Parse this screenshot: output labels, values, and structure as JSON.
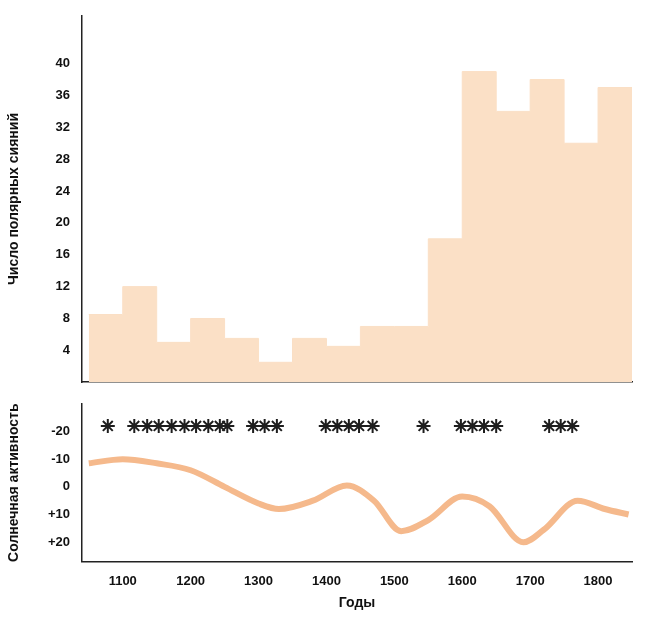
{
  "chart_data": [
    {
      "type": "histogram",
      "y_label": "Число полярных сияний",
      "bins": [
        1050,
        1100,
        1150,
        1200,
        1250,
        1300,
        1350,
        1400,
        1450,
        1500,
        1550,
        1600,
        1650,
        1700,
        1750,
        1800,
        1850
      ],
      "values": [
        8.5,
        12,
        5,
        8,
        5.5,
        2.5,
        5.5,
        4.5,
        7,
        7,
        18,
        39,
        34,
        38,
        30,
        37
      ],
      "color": "#fbe0c6",
      "xlim": [
        1040,
        1850
      ],
      "ylim": [
        0,
        46
      ],
      "yticks": [
        4,
        8,
        12,
        16,
        20,
        24,
        28,
        32,
        36,
        40
      ],
      "grid": false,
      "tick_labels": "y"
    },
    {
      "type": "line",
      "x_label": "Годы",
      "y_label": "Солнечная активность",
      "xlim": [
        1040,
        1850
      ],
      "xticks": [
        1100,
        1200,
        1300,
        1400,
        1500,
        1600,
        1700,
        1800
      ],
      "ylim": [
        27,
        -30
      ],
      "yticks": [
        -20,
        -10,
        0,
        {
          "value": 10,
          "label": "+10"
        },
        {
          "value": 20,
          "label": "+20"
        }
      ],
      "grid": false,
      "series": [
        {
          "type": "line",
          "color": "#f5b98c",
          "line_style": "solid",
          "x": [
            1050,
            1100,
            1150,
            1200,
            1250,
            1300,
            1330,
            1380,
            1430,
            1470,
            1510,
            1550,
            1600,
            1640,
            1690,
            1720,
            1770,
            1810,
            1845
          ],
          "values": [
            -8.5,
            -10,
            -8.5,
            -6,
            0,
            6,
            8,
            5,
            -0.5,
            5,
            16,
            12,
            3.5,
            7,
            20,
            15.5,
            5,
            8,
            10
          ]
        },
        {
          "type": "scatter",
          "color": "#1e1e1e",
          "marker": "star",
          "x": [
            1078,
            1117,
            1136,
            1153,
            1172,
            1191,
            1208,
            1226,
            1243,
            1254,
            1292,
            1309,
            1327,
            1399,
            1416,
            1433,
            1448,
            1468,
            1543,
            1598,
            1615,
            1632,
            1650,
            1728,
            1745,
            1762
          ],
          "values": [
            -22,
            -22,
            -22,
            -22,
            -22,
            -22,
            -22,
            -22,
            -22,
            -22,
            -22,
            -22,
            -22,
            -22,
            -22,
            -22,
            -22,
            -22,
            -22,
            -22,
            -22,
            -22,
            -22,
            -22,
            -22,
            -22
          ]
        }
      ]
    }
  ]
}
